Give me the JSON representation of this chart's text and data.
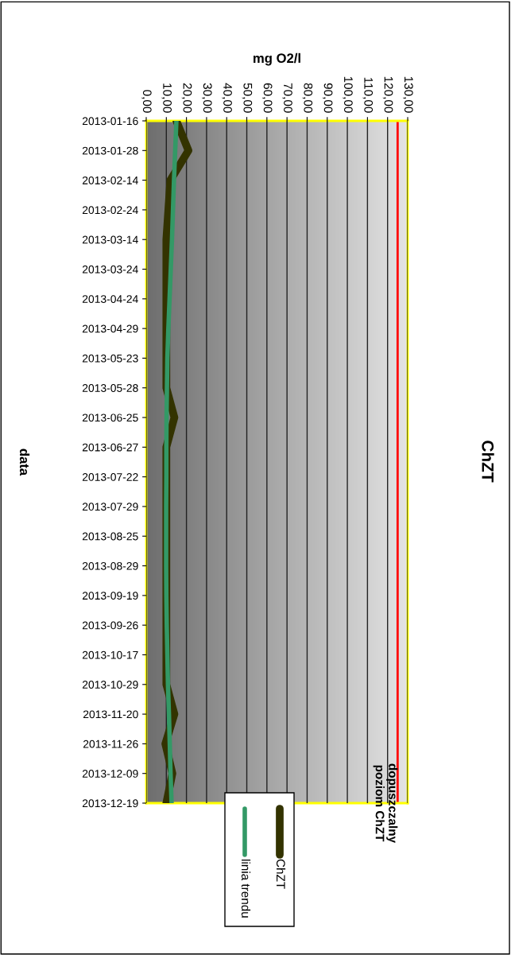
{
  "chart_data": {
    "type": "line",
    "orientation": "horizontal",
    "title": "ChZT",
    "xlabel": "mg O2/l",
    "ylabel": "data",
    "categories": [
      "2013-01-16",
      "2013-01-28",
      "2013-02-14",
      "2013-02-24",
      "2013-03-14",
      "2013-03-24",
      "2013-04-24",
      "2013-04-29",
      "2013-05-23",
      "2013-05-28",
      "2013-06-25",
      "2013-06-27",
      "2013-07-22",
      "2013-07-29",
      "2013-08-25",
      "2013-08-29",
      "2013-09-19",
      "2013-09-26",
      "2013-10-17",
      "2013-10-29",
      "2013-11-20",
      "2013-11-26",
      "2013-12-09",
      "2013-12-19"
    ],
    "series": [
      {
        "name": "ChZT",
        "color": "#333300",
        "values": [
          15,
          21,
          12,
          11,
          10,
          10,
          10,
          10,
          10,
          10,
          14,
          10,
          10,
          10,
          10,
          10,
          10,
          10,
          10,
          10,
          14,
          9.5,
          13,
          10
        ]
      },
      {
        "name": "linia trendu",
        "color": "#339966",
        "values": [
          15,
          14.4,
          13.8,
          13.3,
          12.8,
          12.2,
          11.6,
          11,
          10.5,
          10.3,
          10.1,
          10,
          10,
          9.9,
          9.9,
          9.9,
          10,
          10.2,
          10.5,
          10.8,
          11.3,
          11.7,
          12.1,
          12.6
        ]
      }
    ],
    "xlim": [
      0,
      130
    ],
    "xticks": [
      {
        "value": 0,
        "label": "0,00"
      },
      {
        "value": 10,
        "label": "10,00"
      },
      {
        "value": 20,
        "label": "20,00"
      },
      {
        "value": 30,
        "label": "30,00"
      },
      {
        "value": 40,
        "label": "40,00"
      },
      {
        "value": 50,
        "label": "50,00"
      },
      {
        "value": 60,
        "label": "60,00"
      },
      {
        "value": 70,
        "label": "70,00"
      },
      {
        "value": 80,
        "label": "80,00"
      },
      {
        "value": 90,
        "label": "90,00"
      },
      {
        "value": 100,
        "label": "100,00"
      },
      {
        "value": 110,
        "label": "110,00"
      },
      {
        "value": 120,
        "label": "120,00"
      },
      {
        "value": 130,
        "label": "130,00"
      }
    ],
    "ref_lines": [
      {
        "axis": "x",
        "value": 125,
        "label": "dopuszczalny poziom ChZT",
        "color": "#ff0000"
      }
    ],
    "grid": "x",
    "legend": "bottom",
    "marker": "none",
    "line_style": "solid"
  }
}
